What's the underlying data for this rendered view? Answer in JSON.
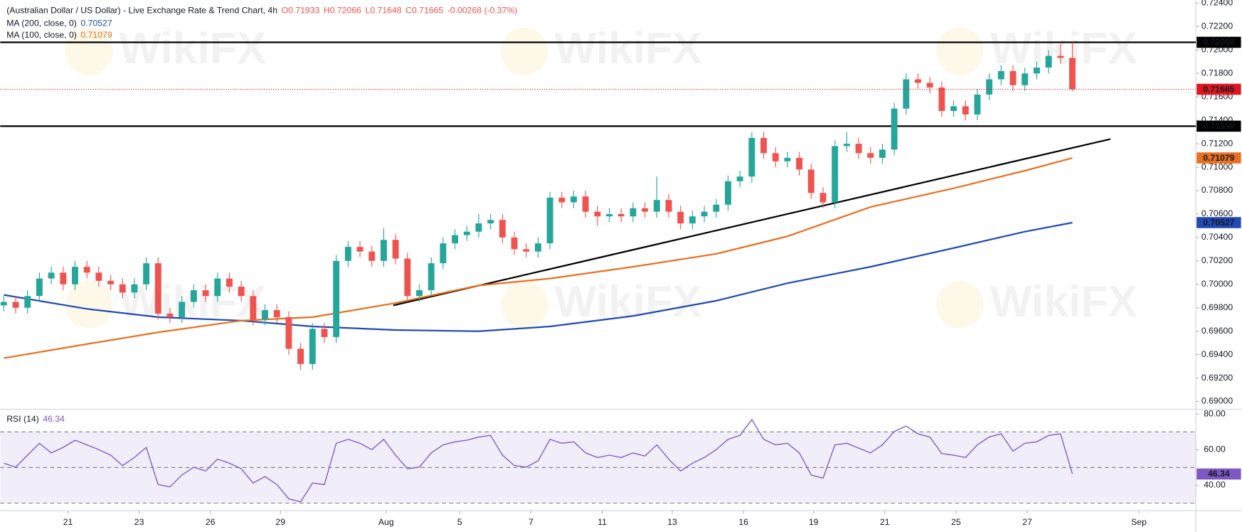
{
  "watermark": "WikiFX",
  "chart_data": [
    {
      "type": "candlestick",
      "title": "(Australian Dollar / US Dollar) - Live Exchange Rate & Trend Chart, 4h",
      "ohlc_labels": [
        "O0.71933",
        "H0.72066",
        "L0.71648",
        "C0.71665",
        "-0.00268 (-0.37%)"
      ],
      "up_color": "#26a69a",
      "down_color": "#ef5350",
      "xlim": [
        -0.3,
        100.4
      ],
      "ylim": [
        0.68947,
        0.72427
      ],
      "yticks": [
        {
          "value": 0.69,
          "label": "0.69000"
        },
        {
          "value": 0.692,
          "label": "0.69200"
        },
        {
          "value": 0.694,
          "label": "0.69400"
        },
        {
          "value": 0.696,
          "label": "0.69600"
        },
        {
          "value": 0.698,
          "label": "0.69800"
        },
        {
          "value": 0.7,
          "label": "0.70000"
        },
        {
          "value": 0.702,
          "label": "0.70200"
        },
        {
          "value": 0.704,
          "label": "0.70400"
        },
        {
          "value": 0.706,
          "label": "0.70600"
        },
        {
          "value": 0.708,
          "label": "0.70800"
        },
        {
          "value": 0.71,
          "label": "0.71000"
        },
        {
          "value": 0.712,
          "label": "0.71200"
        },
        {
          "value": 0.714,
          "label": "0.71400"
        },
        {
          "value": 0.716,
          "label": "0.71600"
        },
        {
          "value": 0.718,
          "label": "0.71800"
        },
        {
          "value": 0.72,
          "label": "0.72000"
        },
        {
          "value": 0.722,
          "label": "0.72200"
        },
        {
          "value": 0.724,
          "label": "0.72400"
        }
      ],
      "open": [
        0.6982,
        0.6985,
        0.698,
        0.699,
        0.7005,
        0.701,
        0.7,
        0.7015,
        0.701,
        0.7003,
        0.7,
        0.6993,
        0.7,
        0.7018,
        0.6975,
        0.6972,
        0.6985,
        0.6995,
        0.699,
        0.7005,
        0.6998,
        0.699,
        0.697,
        0.6978,
        0.6972,
        0.6945,
        0.6932,
        0.6962,
        0.6955,
        0.702,
        0.7032,
        0.7028,
        0.702,
        0.7038,
        0.7022,
        0.699,
        0.6995,
        0.7018,
        0.7035,
        0.7042,
        0.7045,
        0.7052,
        0.7055,
        0.704,
        0.703,
        0.7028,
        0.7035,
        0.7074,
        0.707,
        0.7075,
        0.7062,
        0.7058,
        0.706,
        0.7058,
        0.7065,
        0.7062,
        0.7072,
        0.7062,
        0.7052,
        0.7058,
        0.7062,
        0.7068,
        0.7088,
        0.7092,
        0.7125,
        0.7112,
        0.7105,
        0.7108,
        0.7098,
        0.7078,
        0.707,
        0.7118,
        0.712,
        0.7112,
        0.7108,
        0.7115,
        0.715,
        0.7175,
        0.7172,
        0.7168,
        0.7148,
        0.7152,
        0.7145,
        0.7162,
        0.7175,
        0.7182,
        0.717,
        0.718,
        0.7185,
        0.7195,
        0.71933
      ],
      "high": [
        0.699,
        0.699,
        0.6995,
        0.701,
        0.7015,
        0.7015,
        0.702,
        0.702,
        0.7015,
        0.7008,
        0.7005,
        0.7005,
        0.7023,
        0.7023,
        0.698,
        0.699,
        0.7,
        0.7,
        0.701,
        0.701,
        0.7003,
        0.6995,
        0.6983,
        0.6983,
        0.6977,
        0.695,
        0.6967,
        0.6967,
        0.7025,
        0.7037,
        0.7037,
        0.7033,
        0.7048,
        0.7043,
        0.7027,
        0.7,
        0.7023,
        0.704,
        0.7047,
        0.705,
        0.706,
        0.706,
        0.706,
        0.7045,
        0.7035,
        0.704,
        0.7079,
        0.7079,
        0.708,
        0.708,
        0.7067,
        0.7065,
        0.7065,
        0.707,
        0.707,
        0.7092,
        0.7077,
        0.7067,
        0.7063,
        0.7067,
        0.7073,
        0.7093,
        0.7097,
        0.713,
        0.713,
        0.7117,
        0.7113,
        0.7113,
        0.7103,
        0.7083,
        0.7123,
        0.713,
        0.7125,
        0.7117,
        0.712,
        0.7155,
        0.718,
        0.718,
        0.7177,
        0.7173,
        0.7157,
        0.7157,
        0.7167,
        0.718,
        0.7187,
        0.7187,
        0.7185,
        0.719,
        0.72,
        0.7205,
        0.72066
      ],
      "low": [
        0.6977,
        0.6975,
        0.6975,
        0.6985,
        0.7,
        0.6995,
        0.6995,
        0.7005,
        0.6998,
        0.6995,
        0.6988,
        0.6988,
        0.6995,
        0.697,
        0.6967,
        0.6967,
        0.698,
        0.6985,
        0.6985,
        0.6993,
        0.6985,
        0.6965,
        0.6965,
        0.6967,
        0.694,
        0.6927,
        0.6927,
        0.695,
        0.695,
        0.7015,
        0.7023,
        0.7015,
        0.7015,
        0.7017,
        0.6985,
        0.6985,
        0.699,
        0.7013,
        0.703,
        0.7037,
        0.704,
        0.7047,
        0.7035,
        0.7025,
        0.7023,
        0.7023,
        0.703,
        0.7065,
        0.7065,
        0.7057,
        0.705,
        0.7053,
        0.7053,
        0.7053,
        0.7057,
        0.7057,
        0.7057,
        0.7047,
        0.7047,
        0.7053,
        0.7057,
        0.7063,
        0.7083,
        0.7087,
        0.7107,
        0.71,
        0.71,
        0.7093,
        0.7073,
        0.7065,
        0.7065,
        0.7113,
        0.7107,
        0.7103,
        0.7103,
        0.711,
        0.7145,
        0.7167,
        0.7163,
        0.7143,
        0.7143,
        0.714,
        0.714,
        0.7157,
        0.717,
        0.7165,
        0.7165,
        0.7175,
        0.718,
        0.7188,
        0.71648
      ],
      "close": [
        0.6985,
        0.698,
        0.699,
        0.7005,
        0.701,
        0.7,
        0.7015,
        0.701,
        0.7003,
        0.7,
        0.6993,
        0.7,
        0.7018,
        0.6975,
        0.6972,
        0.6985,
        0.6995,
        0.699,
        0.7005,
        0.6998,
        0.699,
        0.697,
        0.6978,
        0.6972,
        0.6945,
        0.6932,
        0.6962,
        0.6955,
        0.702,
        0.7032,
        0.7028,
        0.702,
        0.7038,
        0.7022,
        0.699,
        0.6995,
        0.7018,
        0.7035,
        0.7042,
        0.7045,
        0.7052,
        0.7055,
        0.704,
        0.703,
        0.7028,
        0.7035,
        0.7074,
        0.707,
        0.7075,
        0.7062,
        0.7058,
        0.706,
        0.7058,
        0.7065,
        0.7062,
        0.7072,
        0.7062,
        0.7052,
        0.7058,
        0.7062,
        0.7068,
        0.7088,
        0.7092,
        0.7125,
        0.7112,
        0.7105,
        0.7108,
        0.7098,
        0.7078,
        0.707,
        0.7118,
        0.712,
        0.7112,
        0.7108,
        0.7115,
        0.715,
        0.7175,
        0.7172,
        0.7168,
        0.7148,
        0.7152,
        0.7145,
        0.7162,
        0.7175,
        0.7182,
        0.717,
        0.718,
        0.7185,
        0.7195,
        0.71933,
        0.71665
      ],
      "series": [
        {
          "name": "MA (200, close, 0)",
          "color": "#2149b4",
          "x": [
            0,
            7,
            13,
            20,
            26,
            33,
            40,
            46,
            53,
            60,
            66,
            73,
            80,
            86,
            90
          ],
          "values": [
            0.6991,
            0.6979,
            0.6972,
            0.6969,
            0.6964,
            0.6961,
            0.696,
            0.6964,
            0.6973,
            0.6986,
            0.7001,
            0.7015,
            0.7031,
            0.7045,
            0.70527
          ]
        },
        {
          "name": "MA (100, close, 0)",
          "color": "#e8701e",
          "x": [
            0,
            7,
            13,
            20,
            26,
            33,
            40,
            46,
            53,
            60,
            66,
            73,
            80,
            86,
            90
          ],
          "values": [
            0.6937,
            0.6949,
            0.6959,
            0.6969,
            0.6972,
            0.6984,
            0.6999,
            0.7005,
            0.7015,
            0.7026,
            0.7041,
            0.7066,
            0.7082,
            0.7097,
            0.71079
          ]
        }
      ],
      "levels": [
        {
          "value": 0.72066,
          "color": "#000000"
        },
        {
          "value": 0.7135,
          "label": "0.71350",
          "color": "#000000"
        }
      ],
      "last_color": "#e0161f",
      "trendline": {
        "x": [
          32.8,
          93.2
        ],
        "values": [
          0.6982,
          0.7124
        ],
        "color": "#000000"
      }
    },
    {
      "type": "line",
      "xlim": [
        -0.3,
        100.4
      ],
      "xticks": [
        {
          "value": 5.4,
          "label": "21"
        },
        {
          "value": 11.4,
          "label": "23"
        },
        {
          "value": 17.4,
          "label": "26"
        },
        {
          "value": 23.3,
          "label": "29"
        },
        {
          "value": 32.2,
          "label": "Aug"
        },
        {
          "value": 38.4,
          "label": "5"
        },
        {
          "value": 44.4,
          "label": "7"
        },
        {
          "value": 50.4,
          "label": "11"
        },
        {
          "value": 56.3,
          "label": "13"
        },
        {
          "value": 62.3,
          "label": "16"
        },
        {
          "value": 68.2,
          "label": "19"
        },
        {
          "value": 74.2,
          "label": "21"
        },
        {
          "value": 80.2,
          "label": "25"
        },
        {
          "value": 86.2,
          "label": "27"
        },
        {
          "value": 95.6,
          "label": "Sep"
        }
      ],
      "ylim": [
        25.78,
        82.67
      ],
      "yticks": [
        {
          "value": 40,
          "label": "40.00"
        },
        {
          "value": 60,
          "label": "60.00"
        },
        {
          "value": 80,
          "label": "80.00"
        }
      ],
      "band": [
        30,
        70
      ],
      "hlines": [
        70,
        50,
        30
      ],
      "series": [
        {
          "name": "RSI (14)",
          "color": "#7e57c2",
          "values": [
            52.4,
            50.2,
            56.9,
            63.6,
            58.2,
            61.3,
            65.3,
            62.7,
            60.0,
            56.9,
            51.1,
            55.6,
            61.3,
            40.4,
            39.1,
            45.8,
            50.2,
            48.0,
            54.7,
            52.4,
            49.3,
            41.3,
            44.9,
            40.4,
            32.4,
            30.7,
            41.3,
            40.4,
            63.6,
            65.8,
            63.6,
            60.0,
            65.8,
            56.9,
            49.3,
            50.2,
            58.2,
            62.7,
            64.4,
            65.3,
            67.1,
            68.0,
            56.9,
            51.1,
            50.2,
            53.8,
            65.8,
            63.6,
            64.4,
            58.2,
            55.6,
            56.9,
            55.6,
            58.2,
            56.4,
            62.7,
            54.7,
            48.0,
            52.4,
            55.6,
            60.0,
            65.8,
            68.0,
            76.9,
            65.8,
            62.7,
            63.6,
            58.2,
            45.8,
            44.0,
            62.7,
            63.6,
            60.9,
            58.2,
            62.7,
            70.2,
            73.3,
            68.9,
            67.1,
            57.8,
            56.9,
            55.6,
            62.7,
            67.1,
            68.9,
            59.1,
            63.6,
            64.4,
            68.0,
            68.9,
            46.34
          ]
        }
      ]
    }
  ]
}
